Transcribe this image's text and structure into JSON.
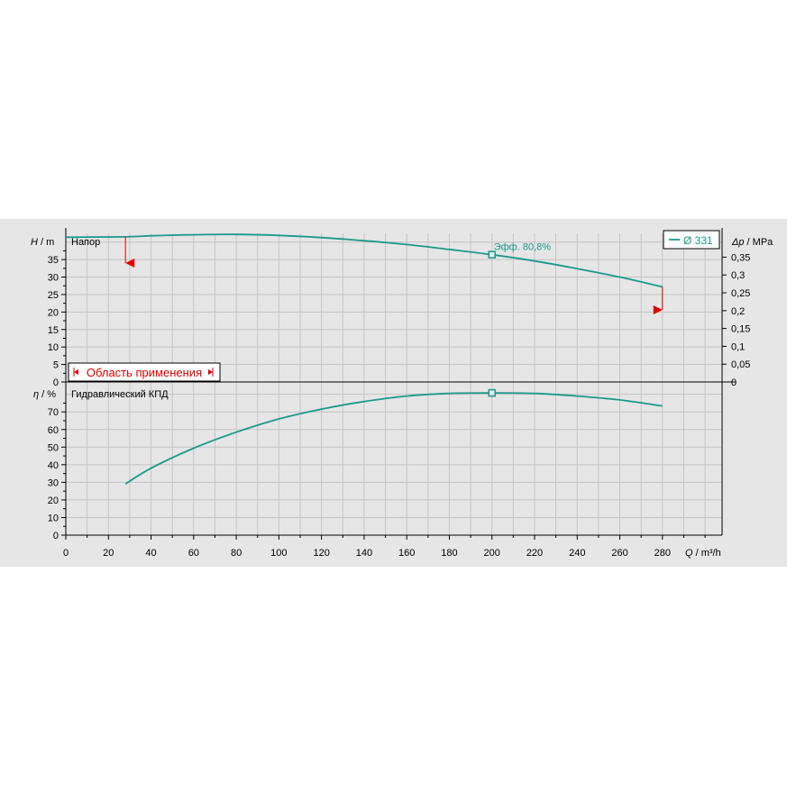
{
  "colors": {
    "panel_bg": "#e6e6e6",
    "plot_bg": "#e6e6e6",
    "grid": "#c4c4c4",
    "axis": "#000000",
    "curve": "#1a9a8a",
    "marker": "#e00000",
    "text": "#000000"
  },
  "chart_data": [
    {
      "type": "line",
      "title": "Напор",
      "ylabel_var": "H",
      "ylabel_unit": "m",
      "y2label_var": "Δp",
      "y2label_unit": "MPa",
      "xlim": [
        0,
        308
      ],
      "ylim": [
        0,
        42.5
      ],
      "y2lim": [
        0,
        0.4168
      ],
      "x_ticks_minor_step": 10,
      "y_ticks": [
        0,
        5,
        10,
        15,
        20,
        25,
        30,
        35
      ],
      "y2_ticks": [
        0,
        0.05,
        0.1,
        0.15,
        0.2,
        0.25,
        0.3,
        0.35
      ],
      "y2_tick_labels": [
        "0",
        "0,05",
        "0,1",
        "0,15",
        "0,2",
        "0,25",
        "0,3",
        "0,35"
      ],
      "grid": true,
      "legend": {
        "position": "top-right",
        "label": "Ø 331"
      },
      "series": [
        {
          "name": "Ø 331",
          "x": [
            0,
            28,
            40,
            60,
            80,
            100,
            120,
            140,
            160,
            180,
            200,
            220,
            240,
            260,
            280
          ],
          "y": [
            41.4,
            41.5,
            41.8,
            42.1,
            42.2,
            41.9,
            41.3,
            40.4,
            39.3,
            37.9,
            36.4,
            34.6,
            32.4,
            30.0,
            27.2
          ]
        }
      ],
      "operating_point": {
        "x": 200,
        "y": 36.4,
        "label": "Эфф.  80,8%"
      },
      "application_range": {
        "label": "Область применения",
        "q_min": 28,
        "q_max": 280
      }
    },
    {
      "type": "line",
      "title": "Гидравлический КПД",
      "ylabel_var": "η",
      "ylabel_unit": "%",
      "xlabel_var": "Q",
      "xlabel_unit": "m³/h",
      "xlim": [
        0,
        308
      ],
      "ylim": [
        0,
        87
      ],
      "x_ticks": [
        0,
        20,
        40,
        60,
        80,
        100,
        120,
        140,
        160,
        180,
        200,
        220,
        240,
        260,
        280
      ],
      "y_ticks": [
        0,
        10,
        20,
        30,
        40,
        50,
        60,
        70
      ],
      "grid": true,
      "series": [
        {
          "name": "Ø 331",
          "x": [
            28,
            40,
            60,
            80,
            100,
            120,
            140,
            160,
            180,
            200,
            220,
            240,
            260,
            280
          ],
          "y": [
            29.1,
            38.0,
            49.4,
            58.5,
            66.0,
            71.6,
            75.9,
            79.0,
            80.5,
            80.8,
            80.5,
            79.0,
            76.8,
            73.4
          ]
        }
      ],
      "operating_point": {
        "x": 200,
        "y": 80.8
      }
    }
  ]
}
